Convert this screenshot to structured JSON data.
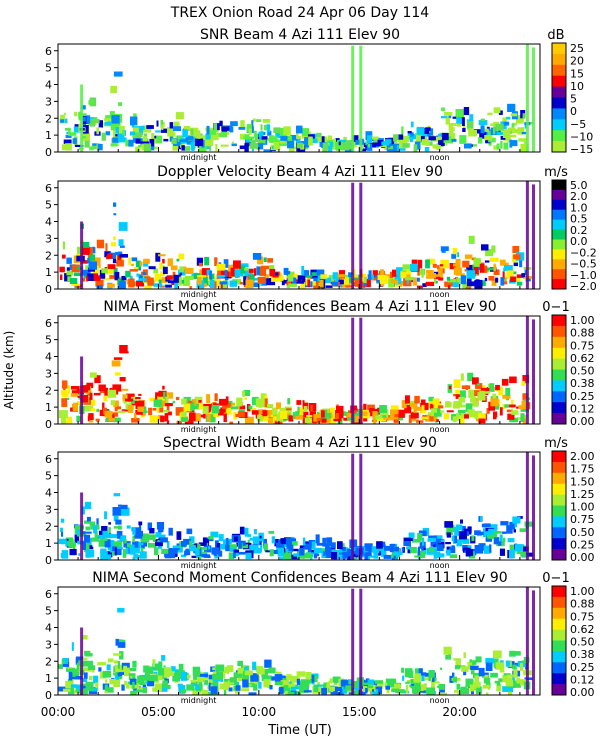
{
  "chart_data": {
    "type": "heatmap",
    "title": "TREX Onion Road  24 Apr 06 Day 114",
    "xlabel": "Time (UT)",
    "ylabel": "Altitude (km)",
    "x_ticks": [
      "00:00",
      "05:00",
      "10:00",
      "15:00",
      "20:00"
    ],
    "x_range_hours": [
      0,
      24
    ],
    "markers": {
      "midnight": "midnight",
      "noon": "noon"
    },
    "panels": [
      {
        "title": "SNR Beam 4 Azi 111 Elev 90",
        "unit": "dB",
        "y_ticks": [
          "0",
          "1",
          "2",
          "3",
          "4",
          "5",
          "6"
        ],
        "ylim": [
          0,
          6.4
        ],
        "colorbar": [
          "25",
          "20",
          "15",
          "10",
          "5",
          "0",
          "−5",
          "−10",
          "−15"
        ],
        "colors": [
          "#ffcc00",
          "#ffaa00",
          "#ff6600",
          "#ff0000",
          "#660099",
          "#0000cc",
          "#0088ff",
          "#00ccff",
          "#55ee44",
          "#aaee33"
        ],
        "blob_colors": [
          "#aaee33",
          "#55ee44",
          "#66dd55",
          "#00ccff",
          "#0088ff",
          "#0000cc",
          "#aaee33"
        ]
      },
      {
        "title": "Doppler Velocity Beam 4 Azi 111 Elev 90",
        "unit": "m/s",
        "y_ticks": [
          "0",
          "1",
          "2",
          "3",
          "4",
          "5",
          "6"
        ],
        "ylim": [
          0,
          6.4
        ],
        "colorbar": [
          "5.0",
          "2.0",
          "1.0",
          "0.5",
          "0.2",
          "0.0",
          "−0.2",
          "−0.5",
          "−1.0",
          "−2.0"
        ],
        "colors": [
          "#000000",
          "#660099",
          "#0000cc",
          "#0077ff",
          "#00ccff",
          "#00cc66",
          "#88ee33",
          "#ffee00",
          "#ffaa00",
          "#ff5500",
          "#ff0000"
        ],
        "blob_colors": [
          "#ff0000",
          "#ff5500",
          "#ffaa00",
          "#ffee00",
          "#88ee33",
          "#00cc66",
          "#00ccff",
          "#0077ff",
          "#0000cc"
        ]
      },
      {
        "title": "NIMA First Moment Confidences Beam 4 Azi 111 Elev 90",
        "unit": "0−1",
        "y_ticks": [
          "0",
          "1",
          "2",
          "3",
          "4",
          "5",
          "6"
        ],
        "ylim": [
          0,
          6.4
        ],
        "colorbar": [
          "1.00",
          "0.88",
          "0.75",
          "0.62",
          "0.50",
          "0.38",
          "0.25",
          "0.12",
          "0.00"
        ],
        "colors": [
          "#ff0000",
          "#ff5500",
          "#ffaa00",
          "#ffee00",
          "#aaee33",
          "#33dd55",
          "#00ccff",
          "#0066ff",
          "#0000cc",
          "#660099"
        ],
        "blob_colors": [
          "#ff0000",
          "#ff5500",
          "#ffaa00",
          "#ffee00",
          "#aaee33",
          "#33dd55",
          "#ff0000"
        ]
      },
      {
        "title": "Spectral Width Beam 4 Azi 111 Elev 90",
        "unit": "m/s",
        "y_ticks": [
          "0",
          "1",
          "2",
          "3",
          "4",
          "5",
          "6"
        ],
        "ylim": [
          0,
          6.4
        ],
        "colorbar": [
          "2.00",
          "1.75",
          "1.50",
          "1.25",
          "1.00",
          "0.75",
          "0.50",
          "0.25",
          "0.00"
        ],
        "colors": [
          "#ff0000",
          "#ff5500",
          "#ffaa00",
          "#ffee00",
          "#aaee33",
          "#33dd55",
          "#00ccff",
          "#0066ff",
          "#0000cc",
          "#660099"
        ],
        "blob_colors": [
          "#0066ff",
          "#00ccff",
          "#0000cc",
          "#33dd55",
          "#00ccff",
          "#0066ff"
        ]
      },
      {
        "title": "NIMA Second Moment Confidences Beam 4 Azi 111 Elev 90",
        "unit": "0−1",
        "y_ticks": [
          "0",
          "1",
          "2",
          "3",
          "4",
          "5",
          "6"
        ],
        "ylim": [
          0,
          6.4
        ],
        "colorbar": [
          "1.00",
          "0.88",
          "0.75",
          "0.62",
          "0.50",
          "0.38",
          "0.25",
          "0.12",
          "0.00"
        ],
        "colors": [
          "#ff0000",
          "#ff5500",
          "#ffaa00",
          "#ffee00",
          "#aaee33",
          "#33dd55",
          "#00ccff",
          "#0066ff",
          "#0000cc",
          "#660099"
        ],
        "blob_colors": [
          "#33dd55",
          "#aaee33",
          "#00ccff",
          "#33dd55",
          "#0066ff",
          "#aaee33"
        ]
      }
    ]
  }
}
